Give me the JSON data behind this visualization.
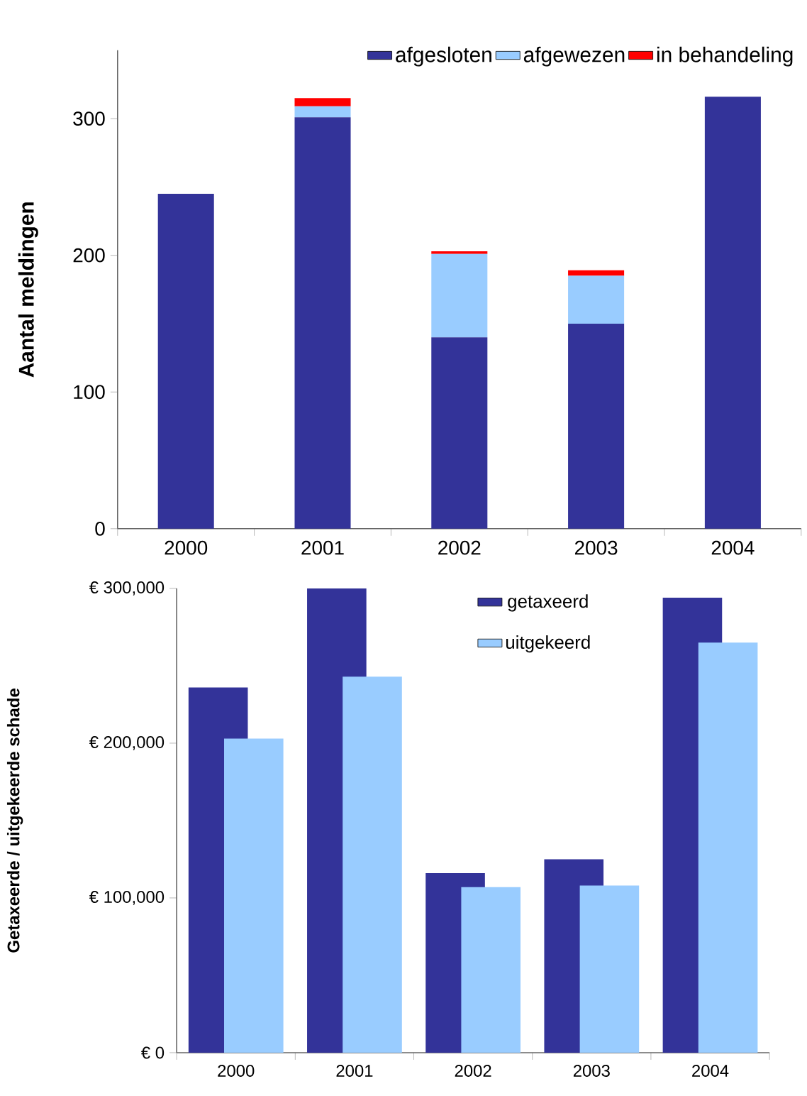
{
  "chart_data": [
    {
      "type": "bar",
      "stacked": true,
      "ylabel": "Aantal meldingen",
      "categories": [
        "2000",
        "2001",
        "2002",
        "2003",
        "2004"
      ],
      "series": [
        {
          "name": "afgesloten",
          "color": "#333399",
          "values": [
            245,
            301,
            140,
            150,
            316
          ]
        },
        {
          "name": "afgewezen",
          "color": "#99ccff",
          "values": [
            0,
            8,
            61,
            35,
            0
          ]
        },
        {
          "name": "in behandeling",
          "color": "#ff0000",
          "values": [
            0,
            6,
            2,
            4,
            0
          ]
        }
      ],
      "ylim": [
        0,
        350
      ],
      "yticks": [
        0,
        100,
        200,
        300
      ],
      "legend": "top right"
    },
    {
      "type": "bar",
      "ylabel": "Getaxeerde / uitgekeerde schade",
      "categories": [
        "2000",
        "2001",
        "2002",
        "2003",
        "2004"
      ],
      "series": [
        {
          "name": "getaxeerd",
          "color": "#333399",
          "values": [
            236000,
            300000,
            116000,
            125000,
            294000
          ]
        },
        {
          "name": "uitgekeerd",
          "color": "#99ccff",
          "values": [
            203000,
            243000,
            107000,
            108000,
            265000
          ]
        }
      ],
      "ylim": [
        0,
        300000
      ],
      "yticks": [
        {
          "value": 0,
          "label": "€ 0"
        },
        {
          "value": 100000,
          "label": "€ 100,000"
        },
        {
          "value": 200000,
          "label": "€ 200,000"
        },
        {
          "value": 300000,
          "label": "€ 300,000"
        }
      ],
      "legend": "top"
    }
  ]
}
